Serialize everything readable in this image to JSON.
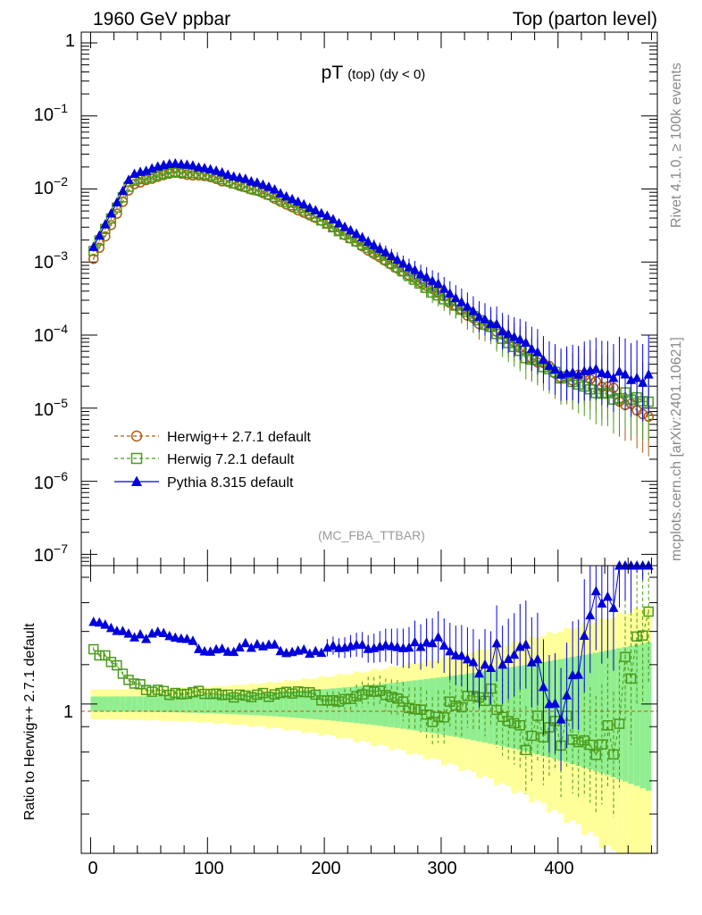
{
  "header": {
    "left": "1960 GeV ppbar",
    "right": "Top (parton level)"
  },
  "side_labels": {
    "rivet": "Rivet 4.1.0, ≥ 100k events",
    "mcplots": "mcplots.cern.ch [arXiv:2401.10621]"
  },
  "chart_data": {
    "type": "line",
    "title": "pT",
    "title_sub": "(top)",
    "title_cut": "(dy < 0)",
    "watermark": "(MC_FBA_TTBAR)",
    "xlabel": "",
    "ylabel": "",
    "ratio_ylabel": "Ratio to Herwig++ 2.7.1 default",
    "xlim": [
      -8,
      485
    ],
    "ylim_log": [
      7e-08,
      1.4
    ],
    "ratio_ylim": [
      0.5,
      1.9
    ],
    "x_ticks": [
      "0",
      "100",
      "200",
      "300",
      "400"
    ],
    "y_ticks": [
      {
        "base": "1",
        "exp": ""
      },
      {
        "base": "10",
        "exp": "−1"
      },
      {
        "base": "10",
        "exp": "−2"
      },
      {
        "base": "10",
        "exp": "−3"
      },
      {
        "base": "10",
        "exp": "−4"
      },
      {
        "base": "10",
        "exp": "−5"
      },
      {
        "base": "10",
        "exp": "−6"
      },
      {
        "base": "10",
        "exp": "−7"
      }
    ],
    "ratio_tick_label": "1",
    "legend": [
      {
        "name": "Herwig++ 2.7.1 default",
        "color": "#b05a10",
        "marker": "circle",
        "style": "dashed"
      },
      {
        "name": "Herwig 7.2.1 default",
        "color": "#4a9a1a",
        "marker": "square",
        "style": "dashed"
      },
      {
        "name": "Pythia 8.315 default",
        "color": "#0000dd",
        "marker": "triangle",
        "style": "solid"
      }
    ],
    "colors": {
      "band_inner": "#90ee90",
      "band_outer": "#ffff99"
    },
    "series_summary": [
      {
        "name": "Herwig++ 2.7.1 default",
        "points": [
          [
            2.5,
            0.0011
          ],
          [
            35,
            0.0115
          ],
          [
            70,
            0.0165
          ],
          [
            100,
            0.015
          ],
          [
            150,
            0.0085
          ],
          [
            200,
            0.0035
          ],
          [
            250,
            0.0011
          ],
          [
            300,
            0.00035
          ],
          [
            350,
            0.0001
          ],
          [
            400,
            3.2e-05
          ],
          [
            450,
            1.6e-05
          ],
          [
            480,
            7.5e-06
          ]
        ]
      },
      {
        "name": "Herwig 7.2.1 default",
        "points": [
          [
            2.5,
            0.00145
          ],
          [
            35,
            0.0125
          ],
          [
            70,
            0.0175
          ],
          [
            100,
            0.0155
          ],
          [
            150,
            0.009
          ],
          [
            200,
            0.0036
          ],
          [
            250,
            0.00115
          ],
          [
            300,
            0.00033
          ],
          [
            350,
            0.0001
          ],
          [
            400,
            2.5e-05
          ],
          [
            450,
            1.5e-05
          ],
          [
            480,
            1e-05
          ]
        ]
      },
      {
        "name": "Pythia 8.315 default",
        "points": [
          [
            2.5,
            0.0016
          ],
          [
            35,
            0.016
          ],
          [
            70,
            0.0225
          ],
          [
            100,
            0.0195
          ],
          [
            150,
            0.011
          ],
          [
            200,
            0.0045
          ],
          [
            250,
            0.00145
          ],
          [
            300,
            0.00045
          ],
          [
            350,
            0.00012
          ],
          [
            400,
            3.5e-05
          ],
          [
            450,
            2.5e-05
          ],
          [
            480,
            3e-05
          ]
        ]
      }
    ]
  }
}
